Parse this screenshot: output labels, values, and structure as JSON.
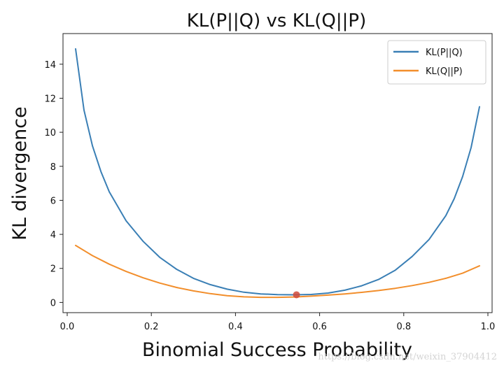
{
  "chart_data": {
    "type": "line",
    "title": "KL(P||Q) vs KL(Q||P)",
    "xlabel": "Binomial Success Probability",
    "ylabel": "KL divergence",
    "xlim": [
      -0.01,
      1.01
    ],
    "ylim": [
      -0.6,
      15.8
    ],
    "grid": false,
    "legend_position": "top-right",
    "x_ticks": [
      {
        "value": 0.0,
        "label": "0.0"
      },
      {
        "value": 0.2,
        "label": "0.2"
      },
      {
        "value": 0.4,
        "label": "0.4"
      },
      {
        "value": 0.6,
        "label": "0.6"
      },
      {
        "value": 0.8,
        "label": "0.8"
      },
      {
        "value": 1.0,
        "label": "1.0"
      }
    ],
    "y_ticks": [
      {
        "value": 0,
        "label": "0"
      },
      {
        "value": 2,
        "label": "2"
      },
      {
        "value": 4,
        "label": "4"
      },
      {
        "value": 6,
        "label": "6"
      },
      {
        "value": 8,
        "label": "8"
      },
      {
        "value": 10,
        "label": "10"
      },
      {
        "value": 12,
        "label": "12"
      },
      {
        "value": 14,
        "label": "14"
      }
    ],
    "series": [
      {
        "name": "KL(P||Q)",
        "color": "#3a7fb5",
        "x": [
          0.02,
          0.04,
          0.06,
          0.08,
          0.1,
          0.14,
          0.18,
          0.22,
          0.26,
          0.3,
          0.34,
          0.38,
          0.42,
          0.46,
          0.5,
          0.54,
          0.58,
          0.62,
          0.66,
          0.7,
          0.74,
          0.78,
          0.82,
          0.86,
          0.9,
          0.92,
          0.94,
          0.96,
          0.98
        ],
        "y": [
          14.9,
          11.3,
          9.2,
          7.7,
          6.5,
          4.8,
          3.6,
          2.65,
          1.95,
          1.42,
          1.05,
          0.78,
          0.6,
          0.5,
          0.46,
          0.45,
          0.47,
          0.55,
          0.72,
          0.98,
          1.35,
          1.9,
          2.7,
          3.7,
          5.1,
          6.1,
          7.4,
          9.1,
          11.5
        ]
      },
      {
        "name": "KL(Q||P)",
        "color": "#f28e2b",
        "x": [
          0.02,
          0.06,
          0.1,
          0.14,
          0.18,
          0.22,
          0.26,
          0.3,
          0.34,
          0.38,
          0.42,
          0.46,
          0.5,
          0.54,
          0.58,
          0.62,
          0.66,
          0.7,
          0.74,
          0.78,
          0.82,
          0.86,
          0.9,
          0.94,
          0.98
        ],
        "y": [
          3.35,
          2.75,
          2.25,
          1.82,
          1.45,
          1.14,
          0.88,
          0.68,
          0.52,
          0.4,
          0.33,
          0.3,
          0.3,
          0.32,
          0.37,
          0.43,
          0.5,
          0.59,
          0.7,
          0.83,
          0.99,
          1.18,
          1.42,
          1.72,
          2.15
        ]
      }
    ],
    "highlight_point": {
      "x": 0.545,
      "y": 0.45,
      "color": "#d04a3a"
    }
  },
  "watermark": "https://blog.csdn.net/weixin_37904412"
}
